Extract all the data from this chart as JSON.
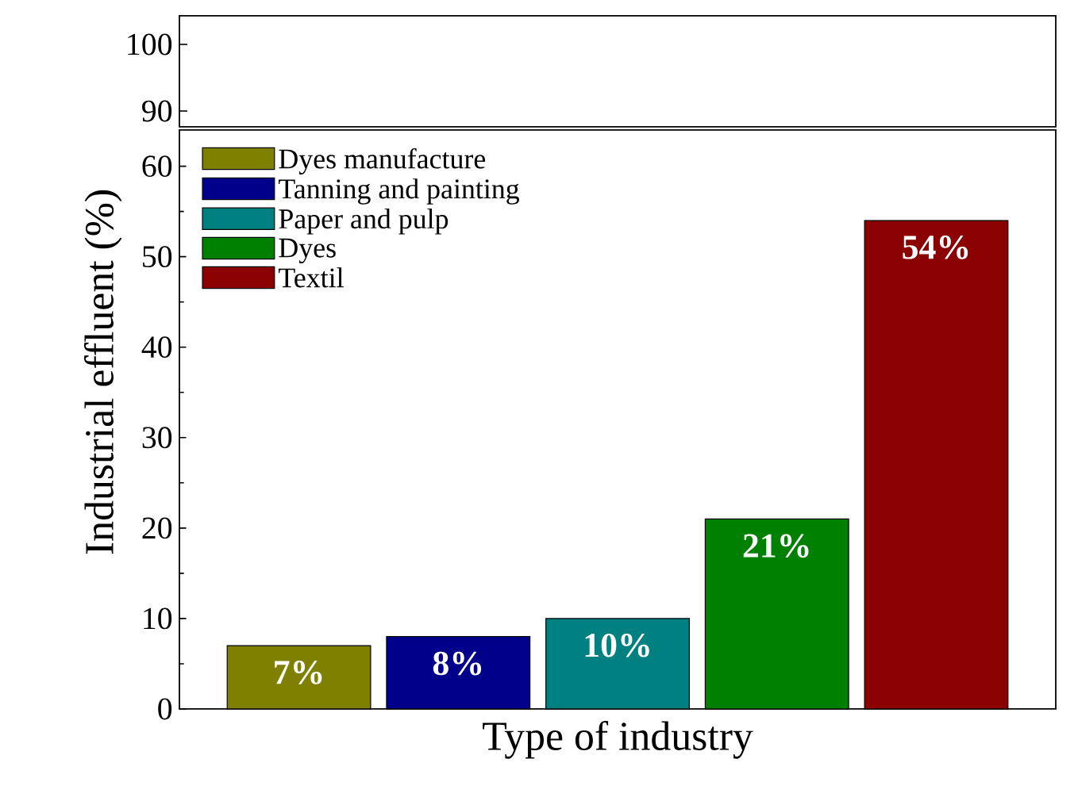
{
  "chart_data": [
    {
      "type": "other",
      "annotations": [
        "100",
        "90"
      ]
    },
    {
      "type": "bar",
      "xlabel": "Type of industry",
      "ylabel": "Industrial effluent (%)",
      "categories": [
        null,
        null,
        null,
        null,
        null
      ],
      "series": [
        {
          "name": "Dyes manufacture",
          "color": "#808000",
          "values": [
            7,
            null,
            null,
            null,
            null
          ],
          "value_labels": [
            "7%",
            null,
            null,
            null,
            null
          ]
        },
        {
          "name": "Tanning and painting",
          "color": "#00008b",
          "values": [
            null,
            8,
            null,
            null,
            null
          ],
          "value_labels": [
            null,
            "8%",
            null,
            null,
            null
          ]
        },
        {
          "name": "Paper and pulp",
          "color": "#008080",
          "values": [
            null,
            null,
            10,
            null,
            null
          ],
          "value_labels": [
            null,
            null,
            "10%",
            null,
            null
          ]
        },
        {
          "name": "Dyes",
          "color": "#008000",
          "values": [
            null,
            null,
            null,
            21,
            null
          ],
          "value_labels": [
            null,
            null,
            null,
            "21%",
            null
          ]
        },
        {
          "name": "Textil",
          "color": "#8b0000",
          "values": [
            null,
            null,
            null,
            null,
            54
          ],
          "value_labels": [
            null,
            null,
            null,
            null,
            "54%"
          ]
        }
      ],
      "ylim": [
        0,
        64
      ],
      "yticks": [
        {
          "value": 0,
          "label": "0"
        },
        {
          "value": 10,
          "label": "10"
        },
        {
          "value": 20,
          "label": "20"
        },
        {
          "value": 30,
          "label": "30"
        },
        {
          "value": 40,
          "label": "40"
        },
        {
          "value": 50,
          "label": "50"
        },
        {
          "value": 60,
          "label": "60"
        }
      ],
      "tick_labels": "y",
      "stacked": true,
      "legend": "top left"
    }
  ]
}
